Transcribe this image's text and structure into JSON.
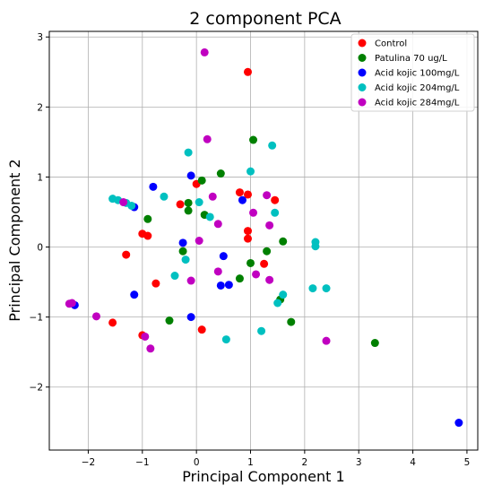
{
  "chart_data": {
    "type": "scatter",
    "title": "2 component PCA",
    "xlabel": "Principal Component 1",
    "ylabel": "Principal Component 2",
    "xlim": [
      -2.72,
      5.2
    ],
    "ylim": [
      -2.9,
      3.08
    ],
    "xticks": [
      -2,
      -1,
      0,
      1,
      2,
      3,
      4,
      5
    ],
    "yticks": [
      -2,
      -1,
      0,
      1,
      2,
      3
    ],
    "grid": true,
    "legend_position": "top-right",
    "series": [
      {
        "name": "Control",
        "color": "#ff0000",
        "points": [
          [
            0.95,
            2.5
          ],
          [
            0.8,
            0.78
          ],
          [
            0.95,
            0.75
          ],
          [
            1.45,
            0.67
          ],
          [
            0.0,
            0.9
          ],
          [
            -0.3,
            0.61
          ],
          [
            -1.0,
            0.19
          ],
          [
            -0.9,
            0.16
          ],
          [
            0.95,
            0.23
          ],
          [
            0.95,
            0.12
          ],
          [
            -1.3,
            -0.11
          ],
          [
            -0.75,
            -0.52
          ],
          [
            1.25,
            -0.24
          ],
          [
            -1.55,
            -1.08
          ],
          [
            -1.0,
            -1.26
          ],
          [
            0.1,
            -1.18
          ]
        ]
      },
      {
        "name": "Patulina 70 ug/L",
        "color": "#008000",
        "points": [
          [
            1.05,
            1.53
          ],
          [
            0.45,
            1.05
          ],
          [
            0.1,
            0.95
          ],
          [
            -0.15,
            0.63
          ],
          [
            -0.15,
            0.52
          ],
          [
            0.15,
            0.46
          ],
          [
            -0.9,
            0.4
          ],
          [
            1.6,
            0.08
          ],
          [
            1.3,
            -0.06
          ],
          [
            -0.25,
            -0.06
          ],
          [
            1.0,
            -0.23
          ],
          [
            0.8,
            -0.45
          ],
          [
            -0.5,
            -1.05
          ],
          [
            1.75,
            -1.07
          ],
          [
            3.3,
            -1.37
          ],
          [
            1.55,
            -0.75
          ]
        ]
      },
      {
        "name": "Acid kojic 100mg/L",
        "color": "#0000ff",
        "points": [
          [
            -0.1,
            1.02
          ],
          [
            -0.8,
            0.86
          ],
          [
            0.85,
            0.67
          ],
          [
            -1.15,
            0.57
          ],
          [
            -0.25,
            0.06
          ],
          [
            0.5,
            -0.13
          ],
          [
            0.45,
            -0.55
          ],
          [
            0.6,
            -0.54
          ],
          [
            -1.15,
            -0.68
          ],
          [
            -0.1,
            -1.0
          ],
          [
            -2.25,
            -0.83
          ],
          [
            4.85,
            -2.51
          ]
        ]
      },
      {
        "name": "Acid kojic 204mg/L",
        "color": "#00c0c0",
        "points": [
          [
            -0.15,
            1.35
          ],
          [
            1.4,
            1.45
          ],
          [
            1.0,
            1.08
          ],
          [
            -1.55,
            0.69
          ],
          [
            -1.45,
            0.67
          ],
          [
            -1.3,
            0.63
          ],
          [
            -1.2,
            0.59
          ],
          [
            -0.6,
            0.72
          ],
          [
            0.25,
            0.43
          ],
          [
            1.45,
            0.49
          ],
          [
            2.2,
            0.07
          ],
          [
            2.2,
            0.01
          ],
          [
            -0.2,
            -0.18
          ],
          [
            -0.4,
            -0.41
          ],
          [
            2.15,
            -0.59
          ],
          [
            2.4,
            -0.59
          ],
          [
            1.6,
            -0.68
          ],
          [
            1.5,
            -0.8
          ],
          [
            1.2,
            -1.2
          ],
          [
            0.55,
            -1.32
          ],
          [
            0.05,
            0.64
          ]
        ]
      },
      {
        "name": "Acid kojic 284mg/L",
        "color": "#c000c0",
        "points": [
          [
            0.15,
            2.78
          ],
          [
            0.2,
            1.54
          ],
          [
            1.3,
            0.74
          ],
          [
            1.05,
            0.49
          ],
          [
            0.3,
            0.72
          ],
          [
            -1.35,
            0.64
          ],
          [
            0.4,
            0.33
          ],
          [
            1.35,
            0.31
          ],
          [
            0.05,
            0.09
          ],
          [
            0.4,
            -0.35
          ],
          [
            1.1,
            -0.39
          ],
          [
            1.35,
            -0.47
          ],
          [
            -0.1,
            -0.48
          ],
          [
            -1.85,
            -0.99
          ],
          [
            -2.3,
            -0.8
          ],
          [
            -2.35,
            -0.81
          ],
          [
            -0.95,
            -1.28
          ],
          [
            -0.85,
            -1.45
          ],
          [
            2.4,
            -1.34
          ]
        ]
      }
    ]
  }
}
